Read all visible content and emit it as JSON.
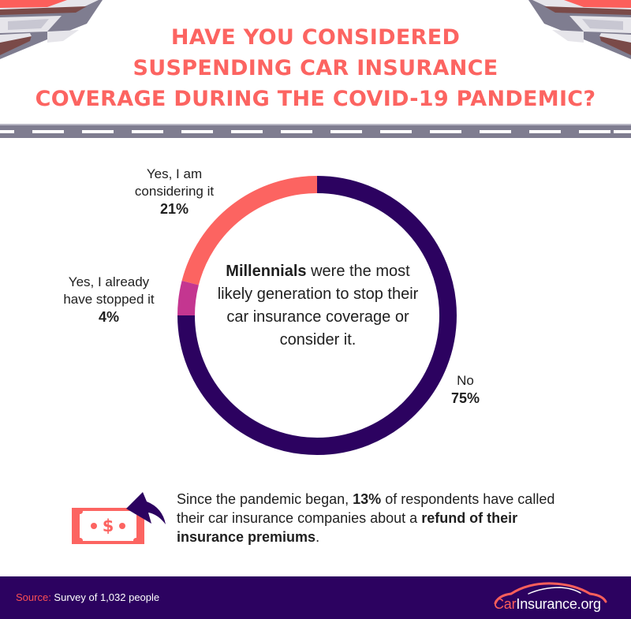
{
  "title": {
    "lines": [
      "HAVE YOU CONSIDERED",
      "SUSPENDING CAR INSURANCE",
      "COVERAGE DURING THE COVID-19 PANDEMIC?"
    ]
  },
  "colors": {
    "accent": "#fc6461",
    "dark_purple": "#2c0260",
    "magenta": "#c43690",
    "road": "#7f7d90"
  },
  "chart_data": {
    "type": "pie",
    "variant": "donut",
    "title": "Have you considered suspending car insurance coverage during the COVID-19 pandemic?",
    "categories": [
      "Yes, I am considering it",
      "Yes, I already have stopped it",
      "No"
    ],
    "values": [
      21,
      4,
      75
    ],
    "unit": "%",
    "colors": [
      "#fc6461",
      "#c43690",
      "#2c0260"
    ],
    "center_annotation": "Millennials were the most likely generation to stop their car insurance coverage or consider it."
  },
  "labels": {
    "considering": {
      "line1": "Yes, I am",
      "line2": "considering it",
      "pct": "21%"
    },
    "stopped": {
      "line1": "Yes, I already",
      "line2": "have stopped it",
      "pct": "4%"
    },
    "no": {
      "line1": "No",
      "pct": "75%"
    }
  },
  "center": {
    "bold": "Millennials",
    "rest": " were the most likely generation to stop their car insurance coverage or consider it."
  },
  "refund": {
    "icon": "money-refund-icon",
    "part1": "Since the pandemic began, ",
    "bold1": "13%",
    "part2": " of respondents have called their car insurance companies about a ",
    "bold2": "refund of their insurance premiums",
    "part3": "."
  },
  "footer": {
    "source_label": "Source:",
    "source_text": " Survey of 1,032 people",
    "brand_car": "Car",
    "brand_rest": "Insurance.org"
  }
}
